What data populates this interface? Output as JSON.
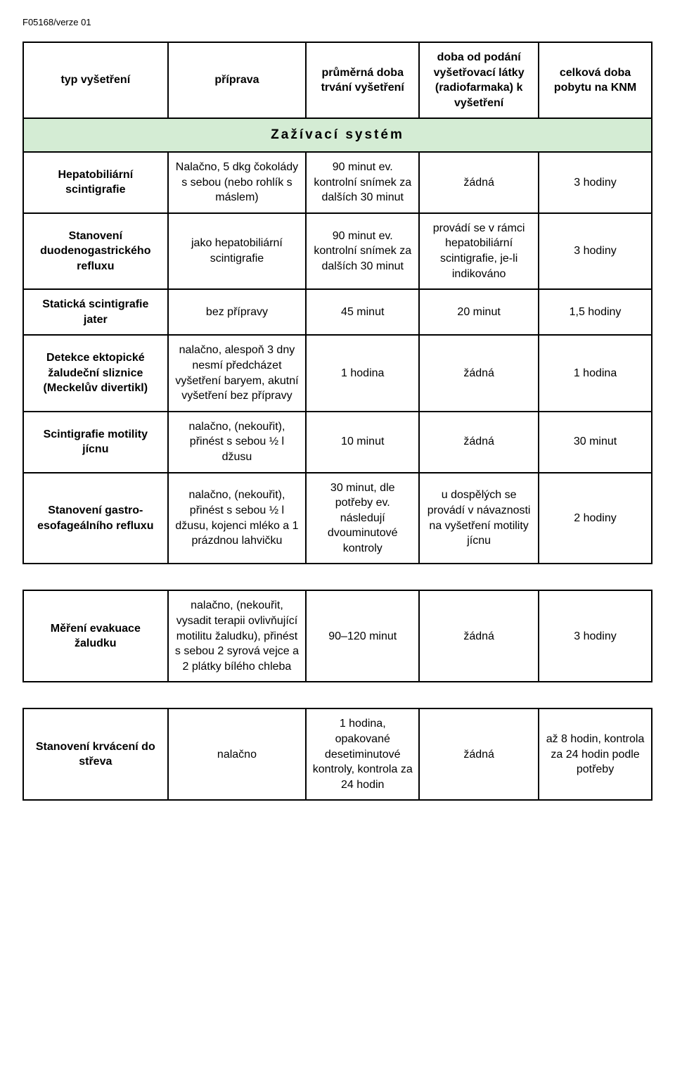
{
  "doc_code": "F05168/verze 01",
  "headers": {
    "c1": "typ vyšetření",
    "c2": "příprava",
    "c3": "průměrná doba trvání vyšetření",
    "c4": "doba od podání vyšetřovací látky (radiofarmaka) k vyšetření",
    "c5": "celková doba pobytu na KNM"
  },
  "section_title": "Zažívací systém",
  "rows_main": [
    {
      "name": "Hepatobiliární scintigrafie",
      "prep": "Nalačno, 5 dkg čokolády s sebou (nebo rohlík s máslem)",
      "dur": "90 minut ev. kontrolní snímek za dalších 30 minut",
      "delay": "žádná",
      "total": "3 hodiny"
    },
    {
      "name": "Stanovení duodenogastrického refluxu",
      "prep": "jako hepatobiliární scintigrafie",
      "dur": "90 minut ev. kontrolní snímek za dalších 30 minut",
      "delay": "provádí se v rámci hepatobiliární scintigrafie, je-li indikováno",
      "total": "3 hodiny"
    },
    {
      "name": "Statická scintigrafie jater",
      "prep": "bez přípravy",
      "dur": "45 minut",
      "delay": "20 minut",
      "total": "1,5 hodiny"
    },
    {
      "name": "Detekce ektopické žaludeční sliznice (Meckelův divertikl)",
      "prep": "nalačno, alespoň 3 dny nesmí předcházet vyšetření baryem, akutní vyšetření bez přípravy",
      "dur": "1 hodina",
      "delay": "žádná",
      "total": "1 hodina"
    },
    {
      "name": "Scintigrafie motility jícnu",
      "prep": "nalačno, (nekouřit), přinést s sebou ½ l džusu",
      "dur": "10 minut",
      "delay": "žádná",
      "total": "30 minut"
    },
    {
      "name": "Stanovení gastro-esofageálního refluxu",
      "prep": "nalačno, (nekouřit), přinést s sebou  ½ l džusu, kojenci mléko a 1 prázdnou lahvičku",
      "dur": "30 minut, dle potřeby ev. následují dvouminutové kontroly",
      "delay": "u dospělých se provádí v návaznosti na vyšetření motility jícnu",
      "total": "2 hodiny"
    }
  ],
  "rows_sep1": [
    {
      "name": "Měření evakuace žaludku",
      "prep": "nalačno, (nekouřit, vysadit terapii ovlivňující motilitu žaludku), přinést s sebou 2 syrová vejce a 2 plátky bílého chleba",
      "dur": "90–120 minut",
      "delay": "žádná",
      "total": "3 hodiny"
    }
  ],
  "rows_sep2": [
    {
      "name": "Stanovení krvácení do střeva",
      "prep": "nalačno",
      "dur": "1 hodina, opakované desetiminutové kontroly, kontrola za 24 hodin",
      "delay": "žádná",
      "total": "až 8 hodin, kontrola za 24 hodin podle potřeby"
    }
  ],
  "colors": {
    "section_bg": "#d4ecd4",
    "border": "#000000",
    "background": "#ffffff",
    "text": "#000000"
  }
}
